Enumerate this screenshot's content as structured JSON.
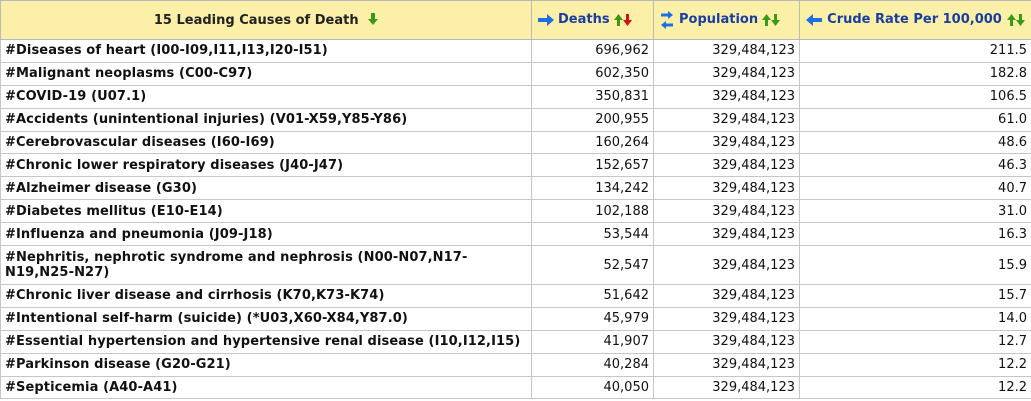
{
  "columns": {
    "cause": "15 Leading Causes of Death",
    "deaths": "Deaths",
    "population": "Population",
    "rate": "Crude Rate Per 100,000"
  },
  "colors": {
    "header_bg": "#fcefa7",
    "header_text": "#1a3fa0",
    "arrow_blue": "#1f6fe0",
    "arrow_green": "#3a9a17",
    "arrow_red": "#d11414"
  },
  "rows": [
    {
      "cause": "#Diseases of heart (I00-I09,I11,I13,I20-I51)",
      "deaths": "696,962",
      "population": "329,484,123",
      "rate": "211.5"
    },
    {
      "cause": "#Malignant neoplasms (C00-C97)",
      "deaths": "602,350",
      "population": "329,484,123",
      "rate": "182.8"
    },
    {
      "cause": "#COVID-19 (U07.1)",
      "deaths": "350,831",
      "population": "329,484,123",
      "rate": "106.5"
    },
    {
      "cause": "#Accidents (unintentional injuries) (V01-X59,Y85-Y86)",
      "deaths": "200,955",
      "population": "329,484,123",
      "rate": "61.0"
    },
    {
      "cause": "#Cerebrovascular diseases (I60-I69)",
      "deaths": "160,264",
      "population": "329,484,123",
      "rate": "48.6"
    },
    {
      "cause": "#Chronic lower respiratory diseases (J40-J47)",
      "deaths": "152,657",
      "population": "329,484,123",
      "rate": "46.3"
    },
    {
      "cause": "#Alzheimer disease (G30)",
      "deaths": "134,242",
      "population": "329,484,123",
      "rate": "40.7"
    },
    {
      "cause": "#Diabetes mellitus (E10-E14)",
      "deaths": "102,188",
      "population": "329,484,123",
      "rate": "31.0"
    },
    {
      "cause": "#Influenza and pneumonia (J09-J18)",
      "deaths": "53,544",
      "population": "329,484,123",
      "rate": "16.3"
    },
    {
      "cause": "#Nephritis, nephrotic syndrome and nephrosis (N00-N07,N17-N19,N25-N27)",
      "deaths": "52,547",
      "population": "329,484,123",
      "rate": "15.9"
    },
    {
      "cause": "#Chronic liver disease and cirrhosis (K70,K73-K74)",
      "deaths": "51,642",
      "population": "329,484,123",
      "rate": "15.7"
    },
    {
      "cause": "#Intentional self-harm (suicide) (*U03,X60-X84,Y87.0)",
      "deaths": "45,979",
      "population": "329,484,123",
      "rate": "14.0"
    },
    {
      "cause": "#Essential hypertension and hypertensive renal disease (I10,I12,I15)",
      "deaths": "41,907",
      "population": "329,484,123",
      "rate": "12.7"
    },
    {
      "cause": "#Parkinson disease (G20-G21)",
      "deaths": "40,284",
      "population": "329,484,123",
      "rate": "12.2"
    },
    {
      "cause": "#Septicemia (A40-A41)",
      "deaths": "40,050",
      "population": "329,484,123",
      "rate": "12.2"
    }
  ]
}
